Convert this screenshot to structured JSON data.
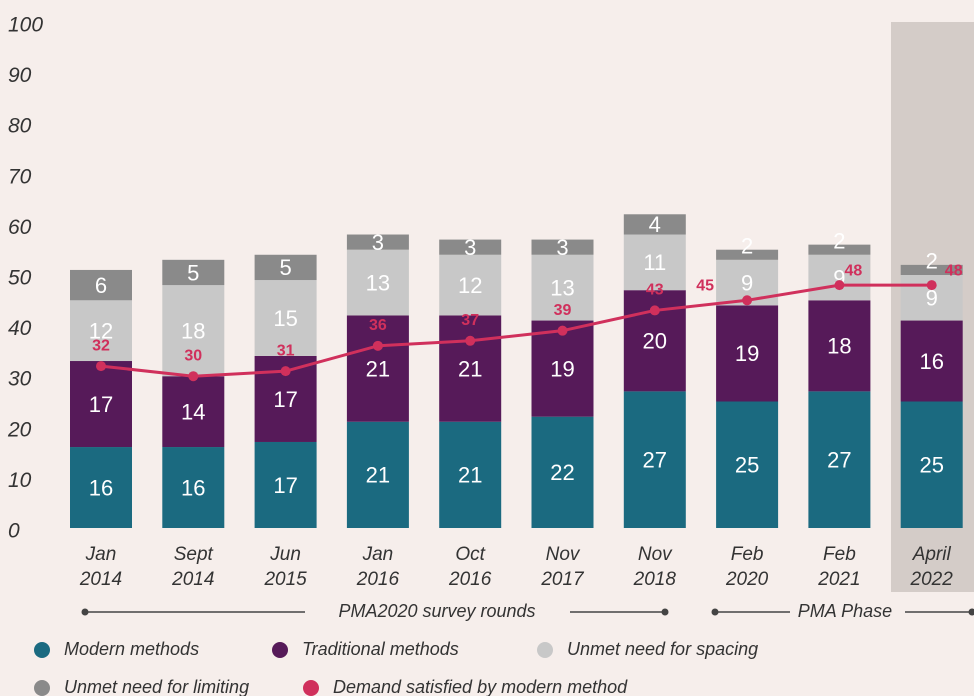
{
  "chart_data": {
    "type": "stacked_bar_line",
    "categories": [
      "Jan 2014",
      "Sept 2014",
      "Jun 2015",
      "Jan 2016",
      "Oct 2016",
      "Nov 2017",
      "Nov 2018",
      "Feb 2020",
      "Feb 2021",
      "April 2022"
    ],
    "series": [
      {
        "name": "Modern methods",
        "color": "#1b6a80",
        "values": [
          16,
          16,
          17,
          21,
          21,
          22,
          27,
          25,
          27,
          25
        ]
      },
      {
        "name": "Traditional methods",
        "color": "#561a59",
        "values": [
          17,
          14,
          17,
          21,
          21,
          19,
          20,
          19,
          18,
          16
        ]
      },
      {
        "name": "Unmet need for spacing",
        "color": "#c8c8c8",
        "values": [
          12,
          18,
          15,
          13,
          12,
          13,
          11,
          9,
          9,
          9
        ]
      },
      {
        "name": "Unmet need for limiting",
        "color": "#8a8a8a",
        "values": [
          6,
          5,
          5,
          3,
          3,
          3,
          4,
          2,
          2,
          2
        ]
      },
      {
        "name": "Demand satisfied by modern method",
        "color": "#d0305c",
        "type": "line",
        "values": [
          32,
          30,
          31,
          36,
          37,
          39,
          43,
          45,
          48,
          48
        ]
      }
    ],
    "ylim": [
      0,
      100
    ],
    "yticks": [
      0,
      10,
      20,
      30,
      40,
      50,
      60,
      70,
      80,
      90,
      100
    ],
    "annotations": [
      "PMA2020 survey rounds",
      "PMA Phase"
    ]
  }
}
